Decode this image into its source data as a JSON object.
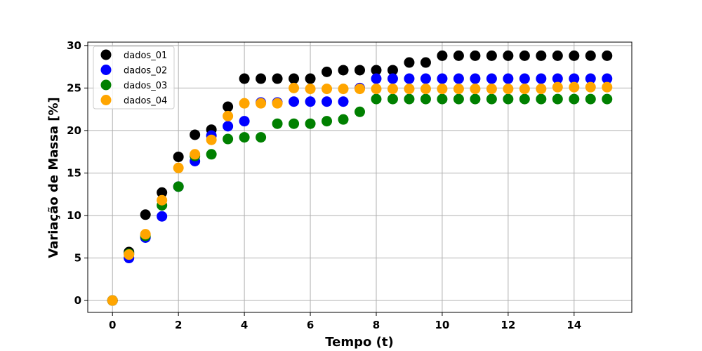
{
  "chart_data": {
    "type": "scatter",
    "xlabel": "Tempo (t)",
    "ylabel": "Variação de Massa [%]",
    "xlim": [
      -0.75,
      15.75
    ],
    "ylim": [
      -1.4,
      30.4
    ],
    "xticks": [
      0,
      2,
      4,
      6,
      8,
      10,
      12,
      14
    ],
    "yticks": [
      0,
      5,
      10,
      15,
      20,
      25,
      30
    ],
    "grid": true,
    "legend_position": "top-left",
    "x": [
      0,
      0.5,
      1,
      1.5,
      2,
      2.5,
      3,
      3.5,
      4,
      4.5,
      5,
      5.5,
      6,
      6.5,
      7,
      7.5,
      8,
      8.5,
      9,
      9.5,
      10,
      10.5,
      11,
      11.5,
      12,
      12.5,
      13,
      13.5,
      14,
      14.5,
      15
    ],
    "series": [
      {
        "name": "dados_01",
        "color": "#000000",
        "values": [
          0,
          5.7,
          10.1,
          12.7,
          16.9,
          19.5,
          20.1,
          22.8,
          26.1,
          26.1,
          26.1,
          26.1,
          26.1,
          26.9,
          27.1,
          27.1,
          27.1,
          27.1,
          28.0,
          28.0,
          28.8,
          28.8,
          28.8,
          28.8,
          28.8,
          28.8,
          28.8,
          28.8,
          28.8,
          28.8,
          28.8
        ]
      },
      {
        "name": "dados_02",
        "color": "#0000ff",
        "values": [
          0,
          5.0,
          7.4,
          9.9,
          13.4,
          16.4,
          19.4,
          20.5,
          21.1,
          23.3,
          23.3,
          23.4,
          23.4,
          23.4,
          23.4,
          25.0,
          26.1,
          26.1,
          26.1,
          26.1,
          26.1,
          26.1,
          26.1,
          26.1,
          26.1,
          26.1,
          26.1,
          26.1,
          26.1,
          26.1,
          26.1
        ]
      },
      {
        "name": "dados_03",
        "color": "#008000",
        "values": [
          0,
          5.5,
          7.6,
          11.2,
          13.4,
          17.0,
          17.2,
          19.0,
          19.2,
          19.2,
          20.8,
          20.8,
          20.8,
          21.1,
          21.3,
          22.2,
          23.7,
          23.7,
          23.7,
          23.7,
          23.7,
          23.7,
          23.7,
          23.7,
          23.7,
          23.7,
          23.7,
          23.7,
          23.7,
          23.7,
          23.7
        ]
      },
      {
        "name": "dados_04",
        "color": "#ffa500",
        "values": [
          0,
          5.4,
          7.8,
          11.8,
          15.6,
          17.2,
          18.9,
          21.7,
          23.2,
          23.2,
          23.2,
          25.0,
          24.9,
          24.9,
          24.9,
          24.9,
          24.9,
          24.9,
          24.9,
          24.9,
          24.9,
          24.9,
          24.9,
          24.9,
          24.9,
          24.9,
          24.9,
          25.1,
          25.1,
          25.1,
          25.1
        ]
      }
    ]
  }
}
